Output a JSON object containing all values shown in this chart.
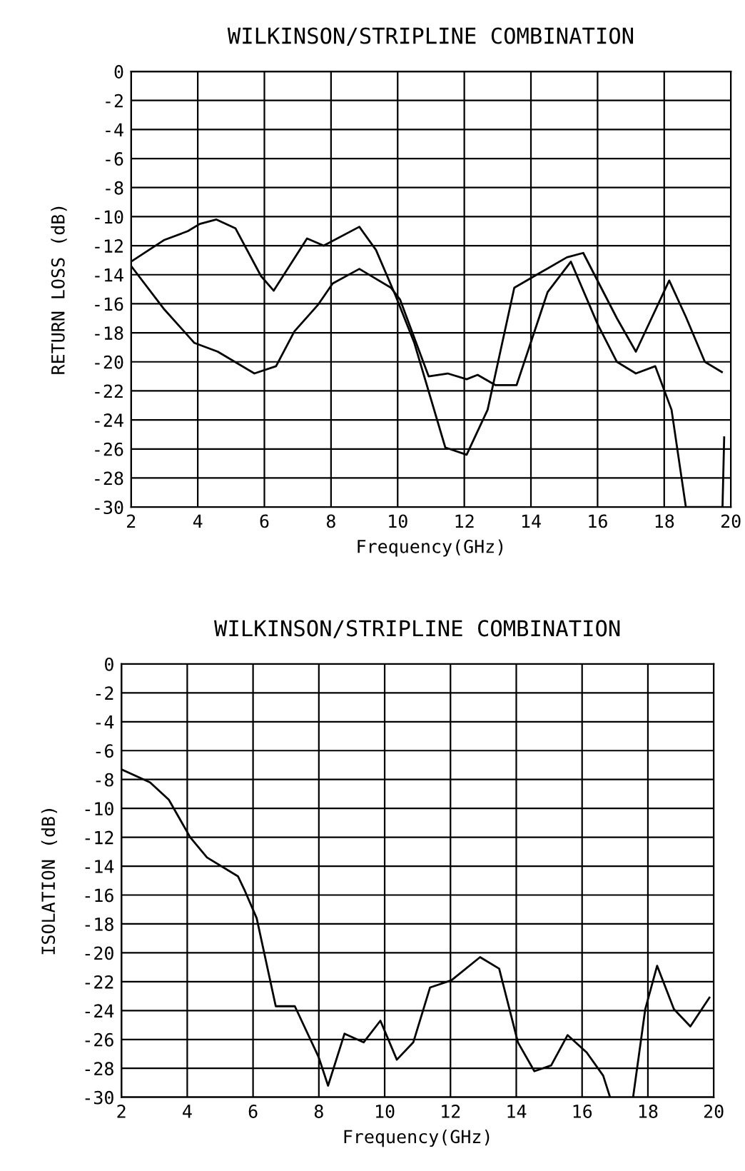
{
  "chart_data": [
    {
      "type": "line",
      "title": "WILKINSON/STRIPLINE COMBINATION",
      "xlabel": "Frequency(GHz)",
      "ylabel": "RETURN LOSS (dB)",
      "series": [
        {
          "color": "#000000",
          "x": [
            2.0,
            3.0,
            3.7,
            4.06,
            4.56,
            5.13,
            5.9,
            6.28,
            7.28,
            7.78,
            8.85,
            9.35,
            9.93,
            10.5,
            11.43,
            12.07,
            12.7,
            13.5,
            15.08,
            15.57,
            16.58,
            17.15,
            18.15,
            18.65,
            19.22,
            19.73
          ],
          "values": [
            -13.1,
            -11.6,
            -11.0,
            -10.5,
            -10.2,
            -10.8,
            -14.1,
            -15.1,
            -11.5,
            -12.0,
            -10.7,
            -12.3,
            -15.4,
            -18.7,
            -25.9,
            -26.4,
            -23.3,
            -14.9,
            -12.8,
            -12.5,
            -17.0,
            -19.3,
            -14.4,
            -16.9,
            -20.0,
            -20.7
          ]
        },
        {
          "color": "#000000",
          "x": [
            2.0,
            3.0,
            3.9,
            4.6,
            5.7,
            6.35,
            6.9,
            7.6,
            8.05,
            8.85,
            9.8,
            10.07,
            10.93,
            11.5,
            12.07,
            12.4,
            12.93,
            13.57,
            14.5,
            15.2,
            16.0,
            16.58,
            17.15,
            17.73,
            18.22,
            18.65,
            19.75,
            19.8
          ],
          "values": [
            -13.4,
            -16.4,
            -18.7,
            -19.3,
            -20.8,
            -20.3,
            -17.9,
            -16.1,
            -14.6,
            -13.6,
            -14.9,
            -15.7,
            -21.0,
            -20.8,
            -21.2,
            -20.9,
            -21.6,
            -21.6,
            -15.2,
            -13.1,
            -17.4,
            -20.0,
            -20.8,
            -20.3,
            -23.3,
            -30,
            -30,
            -25.2
          ]
        }
      ],
      "xlim": [
        2,
        20
      ],
      "xticks": [
        2,
        4,
        6,
        8,
        10,
        12,
        14,
        16,
        18,
        20
      ],
      "ylim": [
        -30,
        0
      ],
      "yticks": [
        0,
        -2,
        -4,
        -6,
        -8,
        -10,
        -12,
        -14,
        -16,
        -18,
        -20,
        -22,
        -24,
        -26,
        -28,
        -30
      ],
      "grid": true
    },
    {
      "type": "line",
      "title": "WILKINSON/STRIPLINE COMBINATION",
      "xlabel": "Frequency(GHz)",
      "ylabel": "ISOLATION (dB)",
      "series": [
        {
          "color": "#000000",
          "x": [
            2.0,
            2.87,
            3.44,
            4.09,
            4.6,
            5.54,
            5.75,
            6.11,
            6.69,
            7.27,
            7.99,
            8.28,
            8.78,
            9.36,
            9.87,
            10.37,
            10.87,
            11.38,
            12.03,
            12.9,
            13.48,
            14.05,
            14.55,
            15.06,
            15.56,
            16.14,
            16.64,
            16.85,
            17.2,
            17.55,
            17.92,
            18.28,
            18.79,
            19.29,
            19.87
          ],
          "values": [
            -7.3,
            -8.2,
            -9.4,
            -12.0,
            -13.4,
            -14.7,
            -15.7,
            -17.6,
            -23.7,
            -23.7,
            -27.2,
            -29.2,
            -25.6,
            -26.2,
            -24.7,
            -27.4,
            -26.2,
            -22.4,
            -21.9,
            -20.3,
            -21.1,
            -26.2,
            -28.2,
            -27.8,
            -25.7,
            -26.9,
            -28.5,
            -30,
            null,
            -30,
            -23.9,
            -20.9,
            -23.9,
            -25.1,
            -23.1
          ]
        }
      ],
      "xlim": [
        2,
        20
      ],
      "xticks": [
        2,
        4,
        6,
        8,
        10,
        12,
        14,
        16,
        18,
        20
      ],
      "ylim": [
        -30,
        0
      ],
      "yticks": [
        0,
        -2,
        -4,
        -6,
        -8,
        -10,
        -12,
        -14,
        -16,
        -18,
        -20,
        -22,
        -24,
        -26,
        -28,
        -30
      ],
      "grid": true
    }
  ]
}
